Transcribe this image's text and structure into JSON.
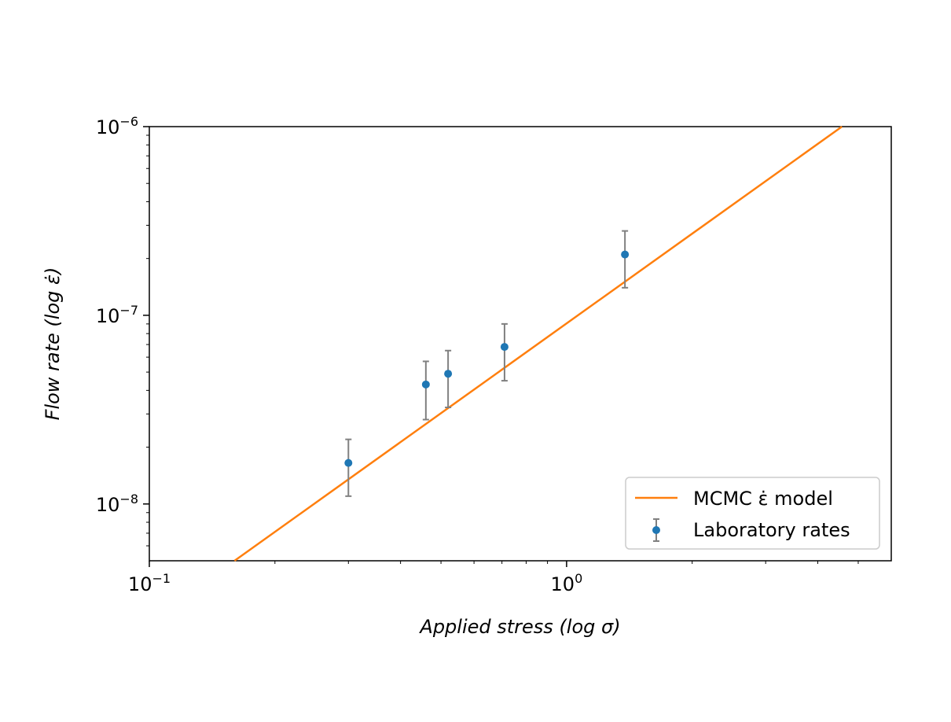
{
  "chart_data": {
    "type": "scatter",
    "xlabel": "Applied stress (log σ)",
    "ylabel": "Flow rate (log ε̇)",
    "x_scale": "log",
    "y_scale": "log",
    "xlim": [
      0.1,
      6.0
    ],
    "ylim": [
      5e-09,
      1e-06
    ],
    "grid": false,
    "legend_position": "bottom-right",
    "x_ticks": [
      {
        "value": 0.1,
        "base": "10",
        "exp": "−1"
      },
      {
        "value": 1.0,
        "base": "10",
        "exp": "0"
      }
    ],
    "y_ticks": [
      {
        "value": 1e-08,
        "base": "10",
        "exp": "−8"
      },
      {
        "value": 1e-07,
        "base": "10",
        "exp": "−7"
      },
      {
        "value": 1e-06,
        "base": "10",
        "exp": "−6"
      }
    ],
    "series": [
      {
        "name": "MCMC ε̇ model",
        "kind": "line",
        "color": "#ff7f0e",
        "x": [
          0.16,
          4.57
        ],
        "y": [
          5e-09,
          1e-06
        ]
      },
      {
        "name": "Laboratory rates",
        "kind": "errorbar",
        "color": "#1f77b4",
        "errorbar_color": "#808080",
        "x": [
          0.3,
          0.46,
          0.52,
          0.71,
          1.38
        ],
        "y": [
          1.65e-08,
          4.3e-08,
          4.9e-08,
          6.8e-08,
          2.1e-07
        ],
        "y_low": [
          1.1e-08,
          2.8e-08,
          3.25e-08,
          4.5e-08,
          1.4e-07
        ],
        "y_high": [
          2.2e-08,
          5.7e-08,
          6.5e-08,
          9e-08,
          2.8e-07
        ]
      }
    ]
  }
}
